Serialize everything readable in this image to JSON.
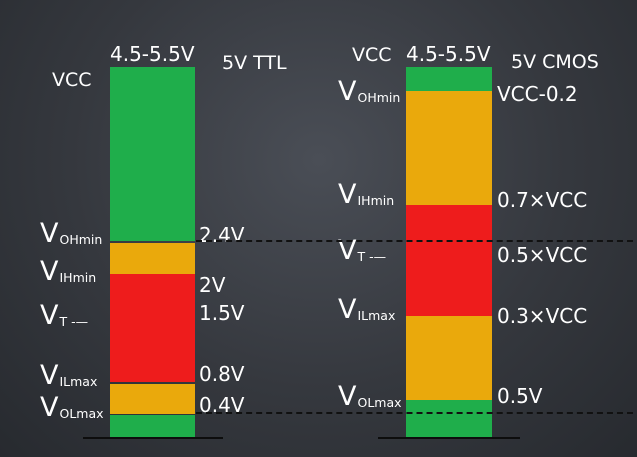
{
  "colors": {
    "green": "#1fae4b",
    "orange": "#eaa90c",
    "red": "#ee1c1c"
  },
  "ttl": {
    "supply_range": "4.5-5.5V",
    "family": "5V TTL",
    "vcc": "VCC",
    "levels": [
      {
        "sym": "V",
        "sub": "OHmin",
        "value": "2.4V"
      },
      {
        "sym": "V",
        "sub": "IHmin",
        "value": "2V"
      },
      {
        "sym": "V",
        "sub": "T -—",
        "value": "1.5V"
      },
      {
        "sym": "V",
        "sub": "ILmax",
        "value": "0.8V"
      },
      {
        "sym": "V",
        "sub": "OLmax",
        "value": "0.4V"
      }
    ]
  },
  "cmos": {
    "supply_range": "4.5-5.5V",
    "family": "5V CMOS",
    "vcc": "VCC",
    "levels": [
      {
        "sym": "V",
        "sub": "OHmin",
        "value": "VCC-0.2"
      },
      {
        "sym": "V",
        "sub": "IHmin",
        "value": "0.7×VCC"
      },
      {
        "sym": "V",
        "sub": "T -—",
        "value": "0.5×VCC"
      },
      {
        "sym": "V",
        "sub": "ILmax",
        "value": "0.3×VCC"
      },
      {
        "sym": "V",
        "sub": "OLmax",
        "value": "0.5V"
      }
    ]
  }
}
